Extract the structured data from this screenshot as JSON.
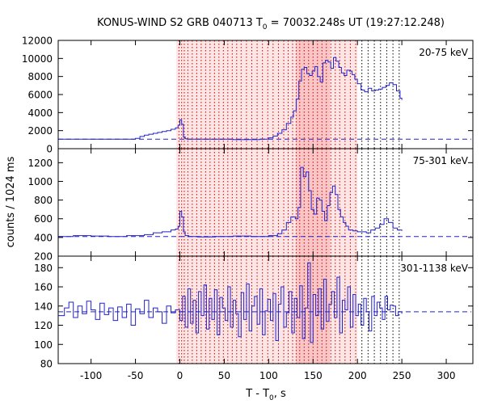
{
  "chart_data": {
    "type": "line",
    "title": {
      "prefix": "KONUS-WIND S2 GRB 040713 T",
      "sub": "0",
      "suffix": " = 70032.248s UT (19:27:12.248)"
    },
    "xlabel": {
      "prefix": "T - T",
      "sub": "0",
      "suffix": ", s"
    },
    "ylabel": "counts / 1024 ms",
    "xlim": [
      -137,
      330
    ],
    "xticks": [
      -100,
      -50,
      0,
      50,
      100,
      150,
      200,
      250,
      300
    ],
    "colors": {
      "curve": "#2222cc",
      "background": "#2222cc",
      "shade": "#f4a0a0",
      "dotted": "#cc0000",
      "dotted_tail": "#000000"
    },
    "shaded_intervals": [
      {
        "from": -4,
        "to": 200,
        "level": "light"
      },
      {
        "from": 131,
        "to": 169,
        "level": "dark"
      }
    ],
    "dotted_lines_red": [
      -1,
      2,
      5,
      9,
      14,
      19,
      24,
      29,
      34,
      39,
      44,
      49,
      54,
      59,
      64,
      69,
      75,
      81,
      87,
      93,
      99,
      105,
      111,
      117,
      122,
      127,
      131,
      135,
      140,
      145,
      150,
      155,
      160,
      165,
      170,
      175,
      180,
      186,
      192,
      198
    ],
    "dotted_lines_black": [
      205,
      212,
      219,
      226,
      233,
      240,
      247
    ],
    "panels": [
      {
        "label": "20-75 keV",
        "ylim": [
          0,
          12000
        ],
        "yticks": [
          0,
          2000,
          4000,
          6000,
          8000,
          10000,
          12000
        ],
        "background": 1050,
        "series": {
          "x": [
            -137,
            -55,
            -50,
            -45,
            -40,
            -35,
            -30,
            -25,
            -20,
            -15,
            -10,
            -5,
            -2,
            0,
            2,
            4,
            6,
            8,
            12,
            30,
            60,
            90,
            100,
            105,
            110,
            115,
            120,
            125,
            128,
            131,
            134,
            137,
            140,
            143,
            146,
            149,
            152,
            155,
            158,
            161,
            164,
            167,
            170,
            173,
            176,
            179,
            182,
            185,
            188,
            191,
            194,
            197,
            200,
            204,
            208,
            212,
            216,
            220,
            224,
            228,
            232,
            236,
            240,
            244,
            248,
            250
          ],
          "y": [
            1050,
            1050,
            1150,
            1350,
            1500,
            1600,
            1700,
            1800,
            1900,
            2000,
            2150,
            2300,
            2600,
            3200,
            2700,
            1300,
            1100,
            1050,
            1050,
            1050,
            1000,
            1050,
            1200,
            1400,
            1700,
            2100,
            2800,
            3500,
            4200,
            5500,
            7500,
            8800,
            9000,
            8300,
            8100,
            8600,
            9100,
            8000,
            7400,
            9500,
            9800,
            9600,
            8900,
            10100,
            9700,
            9000,
            8400,
            8100,
            8700,
            8600,
            8200,
            7700,
            7200,
            6500,
            6300,
            6700,
            6400,
            6500,
            6600,
            6800,
            7000,
            7300,
            7100,
            6400,
            5600,
            5400
          ]
        }
      },
      {
        "label": "75-301 keV",
        "ylim": [
          200,
          1350
        ],
        "yticks": [
          200,
          400,
          600,
          800,
          1000,
          1200
        ],
        "background": 410,
        "series": {
          "x": [
            -137,
            -120,
            -100,
            -80,
            -60,
            -40,
            -30,
            -20,
            -10,
            -5,
            -2,
            0,
            2,
            4,
            6,
            10,
            20,
            40,
            60,
            80,
            100,
            110,
            115,
            120,
            125,
            130,
            133,
            136,
            139,
            142,
            145,
            148,
            151,
            154,
            157,
            160,
            163,
            166,
            169,
            172,
            175,
            178,
            181,
            184,
            187,
            190,
            195,
            200,
            210,
            215,
            220,
            225,
            230,
            235,
            240,
            245,
            250
          ],
          "y": [
            410,
            420,
            415,
            410,
            420,
            430,
            450,
            460,
            480,
            490,
            520,
            680,
            620,
            460,
            420,
            410,
            405,
            410,
            415,
            410,
            420,
            440,
            480,
            560,
            620,
            600,
            720,
            1150,
            1050,
            1100,
            900,
            700,
            650,
            820,
            800,
            680,
            580,
            740,
            880,
            950,
            860,
            700,
            620,
            560,
            520,
            480,
            470,
            460,
            450,
            480,
            500,
            540,
            600,
            560,
            500,
            480,
            470
          ]
        }
      },
      {
        "label": "301-1138 keV",
        "ylim": [
          80,
          192
        ],
        "yticks": [
          80,
          100,
          120,
          140,
          160,
          180
        ],
        "background": 134,
        "series": {
          "x": [
            -137,
            -130,
            -125,
            -120,
            -115,
            -110,
            -105,
            -100,
            -95,
            -90,
            -85,
            -80,
            -75,
            -70,
            -65,
            -60,
            -55,
            -50,
            -45,
            -40,
            -35,
            -30,
            -25,
            -20,
            -15,
            -10,
            -5,
            0,
            3,
            6,
            9,
            12,
            15,
            18,
            21,
            24,
            27,
            30,
            33,
            36,
            39,
            42,
            45,
            48,
            51,
            54,
            57,
            60,
            63,
            66,
            69,
            72,
            75,
            78,
            81,
            84,
            87,
            90,
            93,
            96,
            99,
            102,
            105,
            108,
            111,
            114,
            117,
            120,
            123,
            126,
            129,
            132,
            135,
            138,
            141,
            144,
            147,
            150,
            153,
            156,
            159,
            162,
            165,
            168,
            171,
            174,
            177,
            180,
            183,
            186,
            189,
            192,
            195,
            198,
            201,
            204,
            207,
            210,
            213,
            216,
            219,
            222,
            225,
            228,
            231,
            234,
            237,
            240,
            243,
            246,
            250
          ],
          "y": [
            130,
            138,
            144,
            128,
            140,
            132,
            145,
            136,
            126,
            143,
            131,
            138,
            125,
            139,
            128,
            142,
            120,
            137,
            132,
            146,
            128,
            138,
            134,
            122,
            140,
            133,
            136,
            125,
            150,
            118,
            158,
            122,
            146,
            112,
            155,
            130,
            162,
            116,
            148,
            126,
            157,
            110,
            149,
            138,
            125,
            160,
            118,
            146,
            132,
            108,
            154,
            126,
            163,
            114,
            140,
            150,
            121,
            158,
            110,
            135,
            147,
            125,
            153,
            104,
            142,
            160,
            118,
            133,
            155,
            112,
            148,
            128,
            161,
            106,
            138,
            185,
            102,
            152,
            130,
            158,
            116,
            168,
            124,
            142,
            155,
            128,
            170,
            112,
            146,
            136,
            160,
            118,
            152,
            130,
            142,
            120,
            148,
            134,
            114,
            150,
            130,
            144,
            138,
            126,
            150,
            136,
            141,
            140,
            130,
            134,
            132
          ]
        }
      }
    ]
  }
}
